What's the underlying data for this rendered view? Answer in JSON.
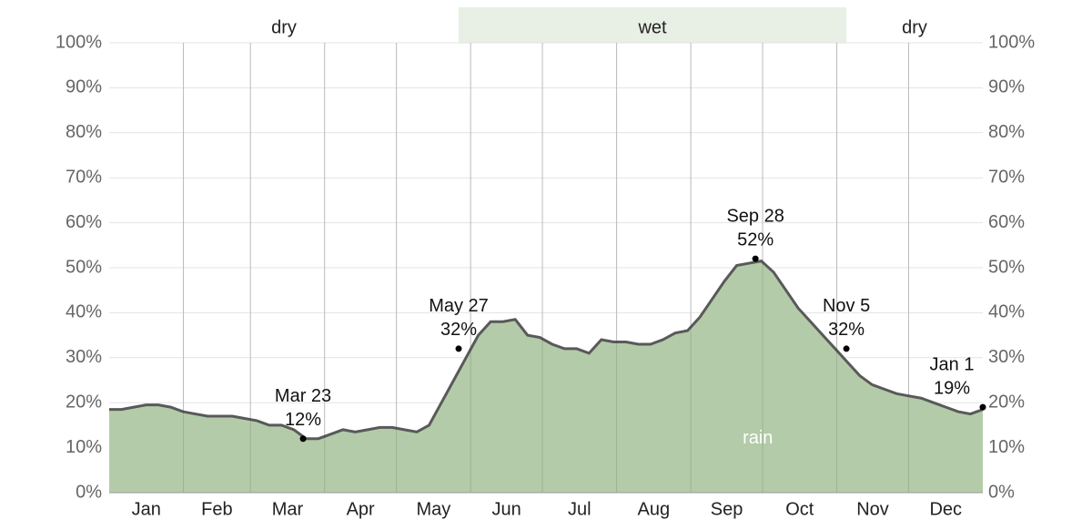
{
  "chart_data": {
    "type": "area",
    "categories": [
      null,
      null,
      "Jan",
      null,
      null,
      null,
      null,
      null,
      "Feb",
      null,
      null,
      null,
      null,
      null,
      "Mar",
      null,
      null,
      null,
      null,
      null,
      "Apr",
      null,
      null,
      null,
      null,
      null,
      "May",
      null,
      null,
      null,
      null,
      null,
      "Jun",
      null,
      null,
      null,
      null,
      null,
      "Jul",
      null,
      null,
      null,
      null,
      null,
      "Aug",
      null,
      null,
      null,
      null,
      null,
      "Sep",
      null,
      null,
      null,
      null,
      null,
      "Oct",
      null,
      null,
      null,
      null,
      null,
      "Nov",
      null,
      null,
      null,
      null,
      null,
      "Dec",
      null,
      null,
      null
    ],
    "series": [
      {
        "name": "rain",
        "color": "#b3cba9",
        "line_color": "#595959",
        "values": [
          18.5,
          18.5,
          19,
          19.5,
          19.5,
          19,
          18,
          17.5,
          17,
          17,
          17,
          16.5,
          16,
          15,
          15,
          14,
          12,
          12,
          13,
          14,
          13.5,
          14,
          14.5,
          14.5,
          14,
          13.5,
          15,
          20,
          25,
          30,
          35,
          38,
          38,
          38.5,
          35,
          34.5,
          33,
          32,
          32,
          31,
          34,
          33.5,
          33.5,
          33,
          33,
          34,
          35.5,
          36,
          39,
          43,
          47,
          50.5,
          51,
          51.5,
          49,
          45,
          41,
          38,
          35,
          32,
          29,
          26,
          24,
          23,
          22,
          21.5,
          21,
          20,
          19,
          18,
          17.5,
          18.5
        ]
      }
    ],
    "ylim": [
      0,
      100
    ],
    "yticks": [
      {
        "value": 0,
        "label": "0%"
      },
      {
        "value": 10,
        "label": "10%"
      },
      {
        "value": 20,
        "label": "20%"
      },
      {
        "value": 30,
        "label": "30%"
      },
      {
        "value": 40,
        "label": "40%"
      },
      {
        "value": 50,
        "label": "50%"
      },
      {
        "value": 60,
        "label": "60%"
      },
      {
        "value": 70,
        "label": "70%"
      },
      {
        "value": 80,
        "label": "80%"
      },
      {
        "value": 90,
        "label": "90%"
      },
      {
        "value": 100,
        "label": "100%"
      }
    ],
    "grid": true,
    "annotations": [
      {
        "date": "Mar 23",
        "value": 12,
        "value_label": "12%"
      },
      {
        "date": "May 27",
        "value": 32,
        "value_label": "32%"
      },
      {
        "date": "Sep 28",
        "value": 52,
        "value_label": "52%"
      },
      {
        "date": "Nov 5",
        "value": 32,
        "value_label": "32%"
      },
      {
        "date": "Jan 1",
        "value": 19,
        "value_label": "19%"
      }
    ],
    "seasons": [
      "dry",
      "wet",
      "dry"
    ]
  }
}
